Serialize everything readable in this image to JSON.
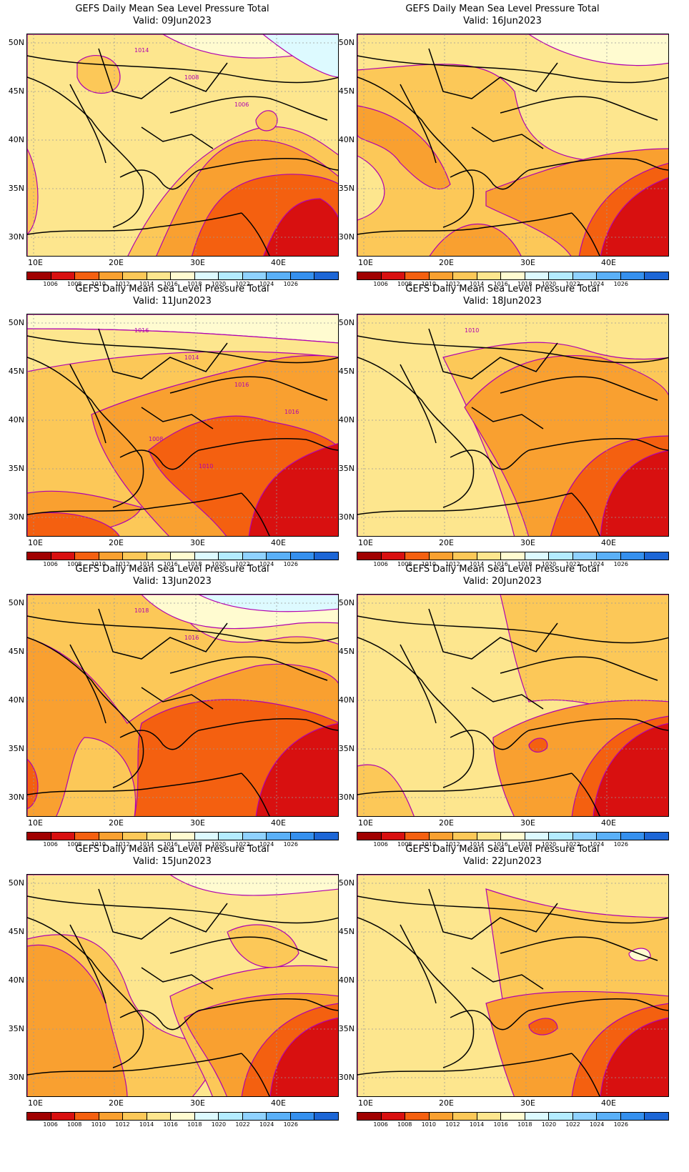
{
  "title": "GEFS Daily Mean Sea Level Pressure Total",
  "axes": {
    "lat_labels": [
      "50N",
      "45N",
      "40N",
      "35N",
      "30N"
    ],
    "lon_labels": [
      "10E",
      "20E",
      "30E",
      "40E"
    ]
  },
  "colorbar": {
    "labels": [
      "1006",
      "1008",
      "1010",
      "1012",
      "1014",
      "1016",
      "1018",
      "1020",
      "1022",
      "1024",
      "1026"
    ],
    "colors": [
      "#a00000",
      "#d81010",
      "#f46010",
      "#f9a030",
      "#fcc858",
      "#fde68e",
      "#fffbd0",
      "#ddfaff",
      "#b4ecff",
      "#8fd2ff",
      "#5ab0f8",
      "#3590ee",
      "#1c66d6"
    ]
  },
  "contour_color": "#b000b0",
  "panels": [
    {
      "valid": "Valid: 09Jun2023",
      "contour_labels": [
        "1014",
        "1008",
        "1006"
      ]
    },
    {
      "valid": "Valid: 16Jun2023",
      "contour_labels": []
    },
    {
      "valid": "Valid: 11Jun2023",
      "contour_labels": [
        "1016",
        "1014",
        "1016",
        "1016",
        "1008",
        "1010"
      ]
    },
    {
      "valid": "Valid: 18Jun2023",
      "contour_labels": [
        "1010"
      ]
    },
    {
      "valid": "Valid: 13Jun2023",
      "contour_labels": [
        "1018",
        "1016"
      ]
    },
    {
      "valid": "Valid: 20Jun2023",
      "contour_labels": []
    },
    {
      "valid": "Valid: 15Jun2023",
      "contour_labels": []
    },
    {
      "valid": "Valid: 22Jun2023",
      "contour_labels": []
    }
  ]
}
